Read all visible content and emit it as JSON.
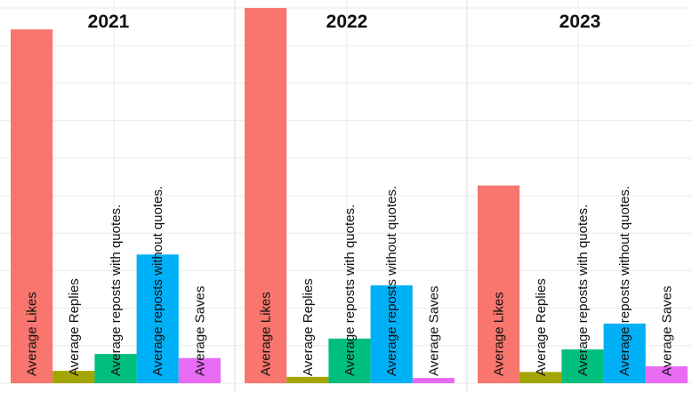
{
  "chart_data": {
    "type": "bar",
    "facet_by": "year",
    "categories": [
      "Average Likes",
      "Average Replies",
      "Average reposts with quotes.",
      "Average reposts without quotes.",
      "Average Saves"
    ],
    "colors": [
      "#F8766D",
      "#A3A500",
      "#00BF7D",
      "#00B0F6",
      "#E76BF3"
    ],
    "ylim": [
      0,
      1.0
    ],
    "grid": true,
    "legend": "none",
    "panels": [
      {
        "title": "2021",
        "values": [
          0.943,
          0.033,
          0.078,
          0.343,
          0.067
        ]
      },
      {
        "title": "2022",
        "values": [
          1.0,
          0.017,
          0.119,
          0.261,
          0.014
        ]
      },
      {
        "title": "2023",
        "values": [
          0.527,
          0.03,
          0.09,
          0.159,
          0.045
        ]
      }
    ]
  }
}
